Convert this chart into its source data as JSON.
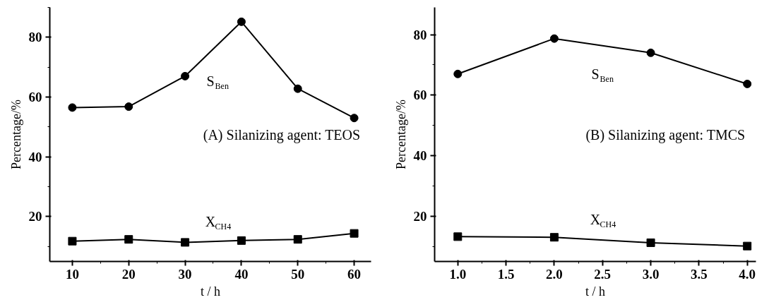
{
  "chart_data": [
    {
      "type": "line",
      "xlabel": "t / h",
      "ylabel": "Percentage/%",
      "annotations": [
        "(A) Silanizing agent: TEOS"
      ],
      "x": [
        10,
        20,
        30,
        40,
        50,
        60
      ],
      "xlim": [
        6,
        63
      ],
      "xticks": [
        10,
        20,
        30,
        40,
        50,
        60
      ],
      "ylim": [
        5,
        90
      ],
      "yticks": [
        20,
        40,
        60,
        80
      ],
      "grid": false,
      "series": [
        {
          "name": "S$_{Ben}$",
          "color": "#000000",
          "marker": "circle",
          "values": [
            56.5,
            56.8,
            67.0,
            85.2,
            62.8,
            53.0
          ]
        },
        {
          "name": "X$_{CH4}$",
          "color": "#000000",
          "marker": "square",
          "values": [
            11.8,
            12.4,
            11.4,
            12.0,
            12.4,
            14.4
          ]
        }
      ]
    },
    {
      "type": "line",
      "xlabel": "t / h",
      "ylabel": "Percentage/%",
      "annotations": [
        "(B) Silanizing agent: TMCS"
      ],
      "x": [
        1.0,
        2.0,
        3.0,
        4.0
      ],
      "xlim": [
        0.76,
        4.09
      ],
      "xticks": [
        {
          "value": 1.0,
          "label": "1.0"
        },
        {
          "value": 1.5,
          "label": "1.5"
        },
        {
          "value": 2.0,
          "label": "2.0"
        },
        {
          "value": 2.5,
          "label": "2.5"
        },
        {
          "value": 3.0,
          "label": "3.0"
        },
        {
          "value": 3.5,
          "label": "3.5"
        },
        {
          "value": 4.0,
          "label": "4.0"
        }
      ],
      "ylim": [
        5,
        89
      ],
      "yticks": [
        20,
        40,
        60,
        80
      ],
      "grid": false,
      "series": [
        {
          "name": "S$_{Ben}$",
          "color": "#000000",
          "marker": "circle",
          "values": [
            67.0,
            78.7,
            74.0,
            63.7
          ]
        },
        {
          "name": "X$_{CH4}$",
          "color": "#000000",
          "marker": "square",
          "values": [
            13.2,
            13.0,
            11.2,
            10.1
          ]
        }
      ]
    }
  ]
}
